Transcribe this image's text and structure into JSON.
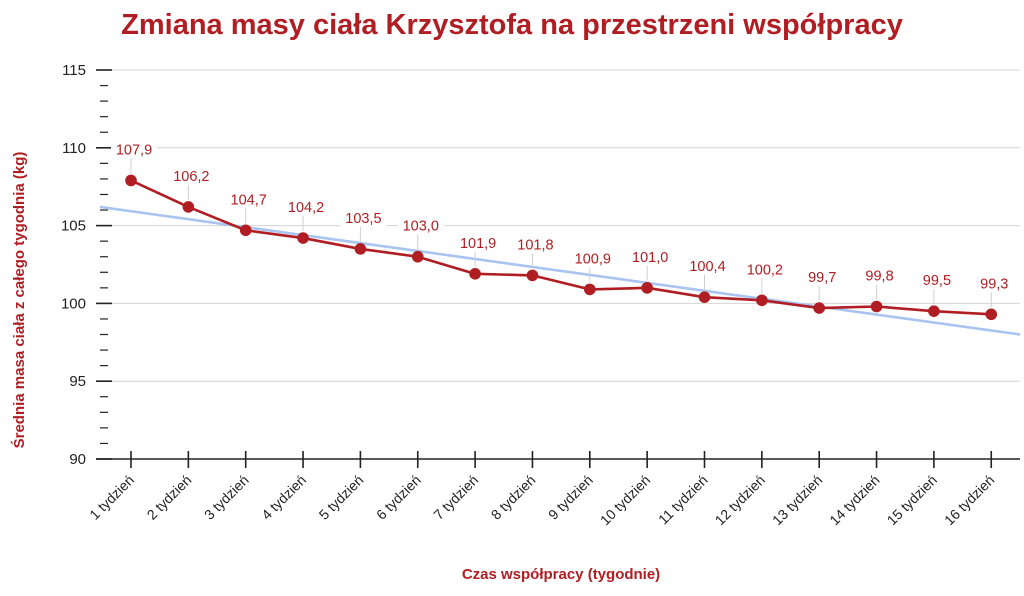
{
  "colors": {
    "accent": "#b01e23",
    "trendline": "#a8c4f0",
    "gridline": "#d4d4d4",
    "axis": "#222222",
    "data_label_box": "#ffffff"
  },
  "chart_data": {
    "type": "line",
    "title": "Zmiana masy ciała Krzysztofa na przestrzeni współpracy",
    "xlabel": "Czas współpracy (tygodnie)",
    "ylabel": "Średnia masa ciała z całego tygodnia (kg)",
    "categories": [
      "1 tydzień",
      "2 tydzień",
      "3 tydzień",
      "4 tydzień",
      "5 tydzień",
      "6 tydzień",
      "7 tydzień",
      "8 tydzień",
      "9 tydzień",
      "10 tydzień",
      "11 tydzień",
      "12 tydzień",
      "13 tydzień",
      "14 tydzień",
      "15 tydzień",
      "16 tydzień"
    ],
    "series": [
      {
        "values": [
          107.9,
          106.2,
          104.7,
          104.2,
          103.5,
          103.0,
          101.9,
          101.8,
          100.9,
          101.0,
          100.4,
          100.2,
          99.7,
          99.8,
          99.5,
          99.3
        ],
        "labels": [
          "107,9",
          "106,2",
          "104,7",
          "104,2",
          "103,5",
          "103,0",
          "101,9",
          "101,8",
          "100,9",
          "101,0",
          "100,4",
          "100,2",
          "99,7",
          "99,8",
          "99,5",
          "99,3"
        ]
      }
    ],
    "trendline": {
      "type": "linear",
      "start": 106.2,
      "end": 98.0
    },
    "ylim": [
      90,
      115
    ],
    "yticks": [
      90,
      95,
      100,
      105,
      110,
      115
    ],
    "ymajor_step": 5,
    "yminor_step": 1,
    "grid": true,
    "legend": "none"
  }
}
